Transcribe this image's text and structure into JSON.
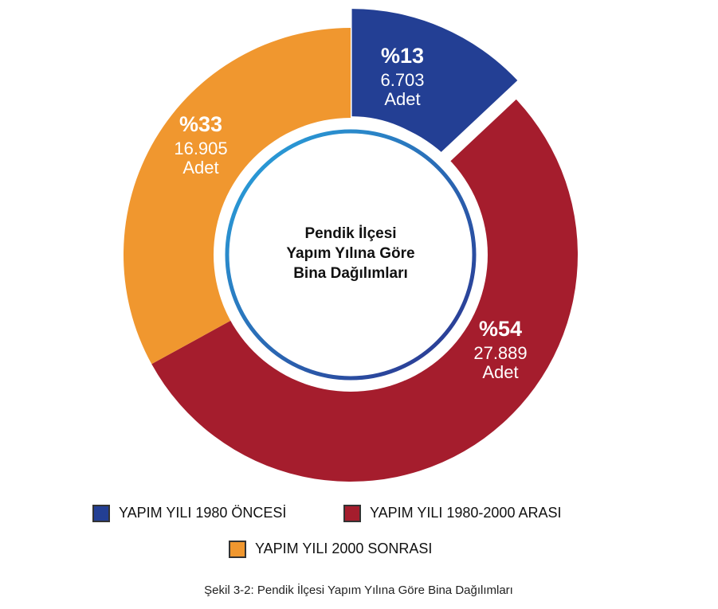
{
  "chart_data": {
    "type": "pie",
    "donut": true,
    "center_text": [
      "Pendik İlçesi",
      "Yapım Yılına Göre",
      "Bina Dağılımları"
    ],
    "categories": [
      "YAPIM YILI 1980 ÖNCESİ",
      "YAPIM YILI 1980-2000 ARASI",
      "YAPIM YILI 2000 SONRASI"
    ],
    "values": [
      13,
      54,
      33
    ],
    "value_labels": [
      "%13",
      "%54",
      "%33"
    ],
    "counts": [
      6703,
      27889,
      16905
    ],
    "count_labels": [
      "6.703",
      "27.889",
      "16.905"
    ],
    "unit": "Adet",
    "colors": [
      "#233f94",
      "#a51d2d",
      "#f0972f"
    ],
    "exploded": [
      true,
      false,
      false
    ],
    "caption": "Şekil 3-2: Pendik İlçesi Yapım Yılına Göre Bina Dağılımları"
  }
}
